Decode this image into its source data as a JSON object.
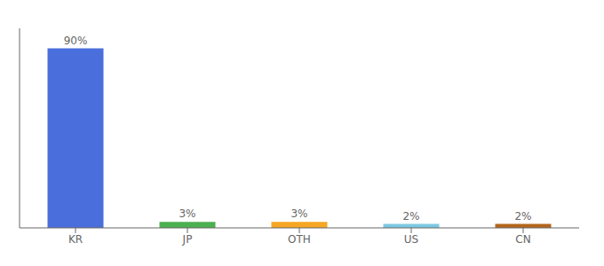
{
  "chart_data": {
    "type": "bar",
    "categories": [
      "KR",
      "JP",
      "OTH",
      "US",
      "CN"
    ],
    "values": [
      90,
      3,
      3,
      2,
      2
    ],
    "value_labels": [
      "90%",
      "3%",
      "3%",
      "2%",
      "2%"
    ],
    "colors": [
      "#4a6edb",
      "#4caf50",
      "#f5a623",
      "#7ec8e3",
      "#b5651d"
    ],
    "ylim": [
      0,
      100
    ],
    "data_labels": true,
    "tick_labels": "x"
  }
}
